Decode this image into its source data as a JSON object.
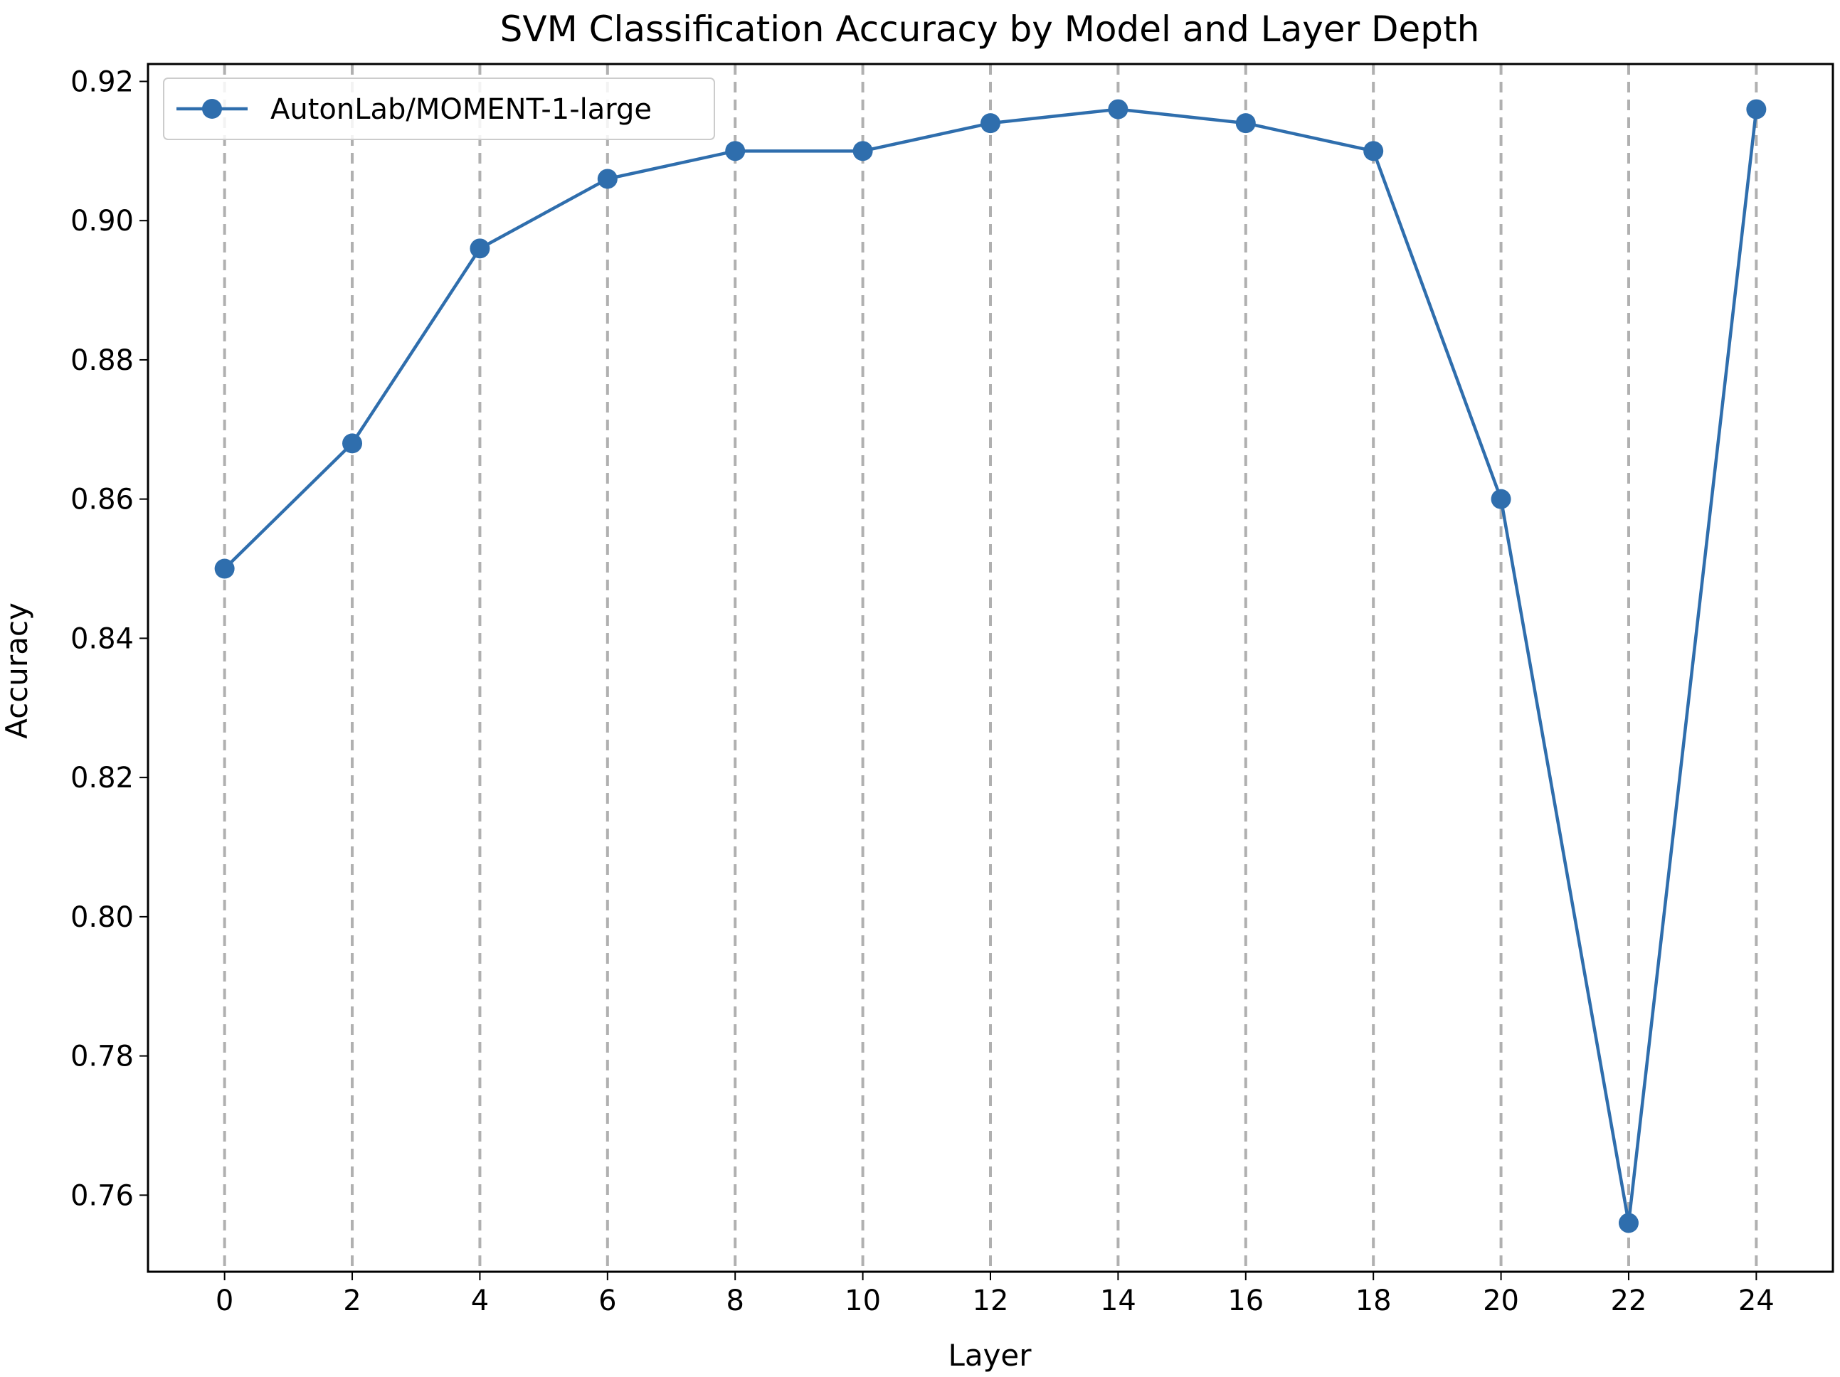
{
  "chart_data": {
    "type": "line",
    "title": "SVM Classification Accuracy by Model and Layer Depth",
    "xlabel": "Layer",
    "ylabel": "Accuracy",
    "xlim": [
      -1.2,
      25.2
    ],
    "ylim": [
      0.749,
      0.9225
    ],
    "x_ticks": [
      0,
      2,
      4,
      6,
      8,
      10,
      12,
      14,
      16,
      18,
      20,
      22,
      24
    ],
    "x_tick_labels": [
      "0",
      "2",
      "4",
      "6",
      "8",
      "10",
      "12",
      "14",
      "16",
      "18",
      "20",
      "22",
      "24"
    ],
    "y_ticks": [
      0.76,
      0.78,
      0.8,
      0.82,
      0.84,
      0.86,
      0.88,
      0.9,
      0.92
    ],
    "y_tick_labels": [
      "0.76",
      "0.78",
      "0.80",
      "0.82",
      "0.84",
      "0.86",
      "0.88",
      "0.90",
      "0.92"
    ],
    "grid": "x-axis dashed vertical lines",
    "legend_position": "upper-left",
    "series": [
      {
        "name": "AutonLab/MOMENT-1-large",
        "color": "#2f6ead",
        "marker": "circle",
        "x": [
          0,
          2,
          4,
          6,
          8,
          10,
          12,
          14,
          16,
          18,
          20,
          22,
          24
        ],
        "y": [
          0.85,
          0.868,
          0.896,
          0.906,
          0.91,
          0.91,
          0.914,
          0.916,
          0.914,
          0.91,
          0.86,
          0.756,
          0.916
        ]
      }
    ]
  }
}
